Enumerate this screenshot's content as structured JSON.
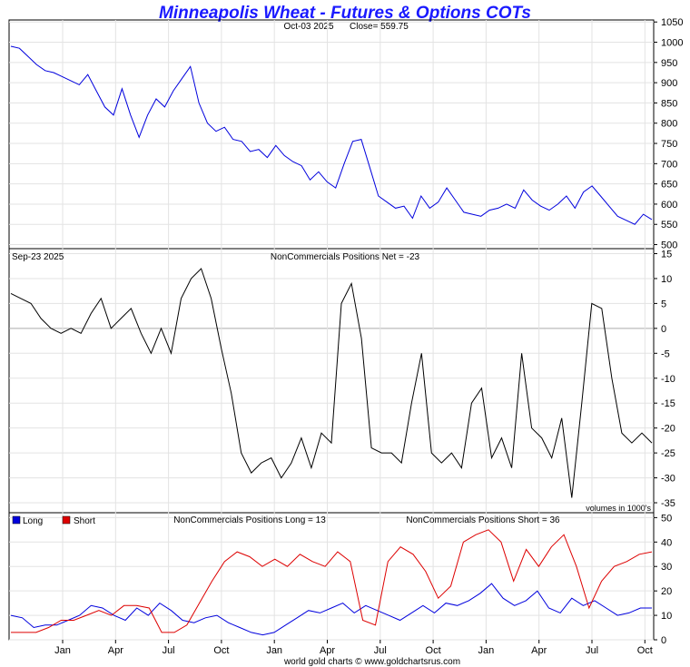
{
  "chart_data": [
    {
      "type": "line",
      "title": "Minneapolis Wheat - Futures & Options COTs",
      "subtitle_date": "Oct-03  2025",
      "subtitle_close": "Close= 559.75",
      "ylim": [
        490,
        1055
      ],
      "yticks": [
        500,
        550,
        600,
        650,
        700,
        750,
        800,
        850,
        900,
        950,
        1000,
        1050
      ],
      "series": [
        {
          "name": "Price",
          "color": "#0000dd",
          "values": [
            990,
            985,
            965,
            945,
            930,
            925,
            915,
            905,
            895,
            920,
            880,
            840,
            820,
            885,
            820,
            765,
            820,
            860,
            840,
            880,
            910,
            940,
            850,
            800,
            780,
            790,
            760,
            755,
            730,
            735,
            715,
            745,
            720,
            705,
            695,
            660,
            680,
            655,
            640,
            700,
            755,
            760,
            690,
            620,
            605,
            590,
            595,
            565,
            620,
            590,
            605,
            640,
            610,
            580,
            575,
            570,
            585,
            590,
            600,
            590,
            635,
            610,
            595,
            585,
            600,
            620,
            590,
            630,
            645,
            620,
            595,
            570,
            560,
            550,
            575,
            562
          ]
        }
      ]
    },
    {
      "type": "line",
      "date_label": "Sep-23  2025",
      "title": "NonCommercials Positions Net = -23",
      "ylim": [
        -37,
        16
      ],
      "yticks": [
        -35,
        -30,
        -25,
        -20,
        -15,
        -10,
        -5,
        0,
        5,
        10,
        15
      ],
      "series": [
        {
          "name": "Net",
          "color": "#000000",
          "values": [
            7,
            6,
            5,
            2,
            0,
            -1,
            0,
            -1,
            3,
            6,
            0,
            2,
            4,
            -1,
            -5,
            0,
            -5,
            6,
            10,
            12,
            6,
            -4,
            -13,
            -25,
            -29,
            -27,
            -26,
            -30,
            -27,
            -22,
            -28,
            -21,
            -23,
            5,
            9,
            -2,
            -24,
            -25,
            -25,
            -27,
            -15,
            -5,
            -25,
            -27,
            -25,
            -28,
            -15,
            -12,
            -26,
            -22,
            -28,
            -5,
            -20,
            -22,
            -26,
            -18,
            -34,
            -15,
            5,
            4,
            -10,
            -21,
            -23,
            -21,
            -23
          ]
        }
      ],
      "note": "volumes in 1000's"
    },
    {
      "type": "line",
      "title_long": "NonCommercials Positions Long = 13",
      "title_short": "NonCommercials Positions Short = 36",
      "ylim": [
        0,
        52
      ],
      "yticks": [
        0,
        10,
        20,
        30,
        40,
        50
      ],
      "legend": [
        {
          "label": "Long",
          "color": "#0000dd"
        },
        {
          "label": "Short",
          "color": "#dd0000"
        }
      ],
      "series": [
        {
          "name": "Long",
          "color": "#0000dd",
          "values": [
            10,
            9,
            5,
            6,
            6,
            8,
            10,
            14,
            13,
            10,
            8,
            13,
            10,
            15,
            12,
            8,
            7,
            9,
            10,
            7,
            5,
            3,
            2,
            3,
            6,
            9,
            12,
            11,
            13,
            15,
            11,
            14,
            12,
            10,
            8,
            11,
            14,
            11,
            15,
            14,
            16,
            19,
            23,
            17,
            14,
            16,
            20,
            13,
            11,
            17,
            14,
            16,
            13,
            10,
            11,
            13,
            13
          ]
        },
        {
          "name": "Short",
          "color": "#dd0000",
          "values": [
            3,
            3,
            3,
            5,
            8,
            8,
            10,
            12,
            10,
            14,
            14,
            13,
            3,
            3,
            6,
            15,
            24,
            32,
            36,
            34,
            30,
            33,
            30,
            35,
            32,
            30,
            36,
            32,
            8,
            6,
            32,
            38,
            35,
            28,
            17,
            22,
            40,
            43,
            45,
            40,
            24,
            37,
            30,
            38,
            43,
            30,
            13,
            24,
            30,
            32,
            35,
            36
          ]
        }
      ],
      "x_tick_labels": [
        "Jan",
        "Apr",
        "Jul",
        "Oct",
        "Jan",
        "Apr",
        "Jul",
        "Oct",
        "Jan",
        "Apr",
        "Jul",
        "Oct"
      ],
      "footer": "world gold charts © www.goldchartsrus.com"
    }
  ]
}
